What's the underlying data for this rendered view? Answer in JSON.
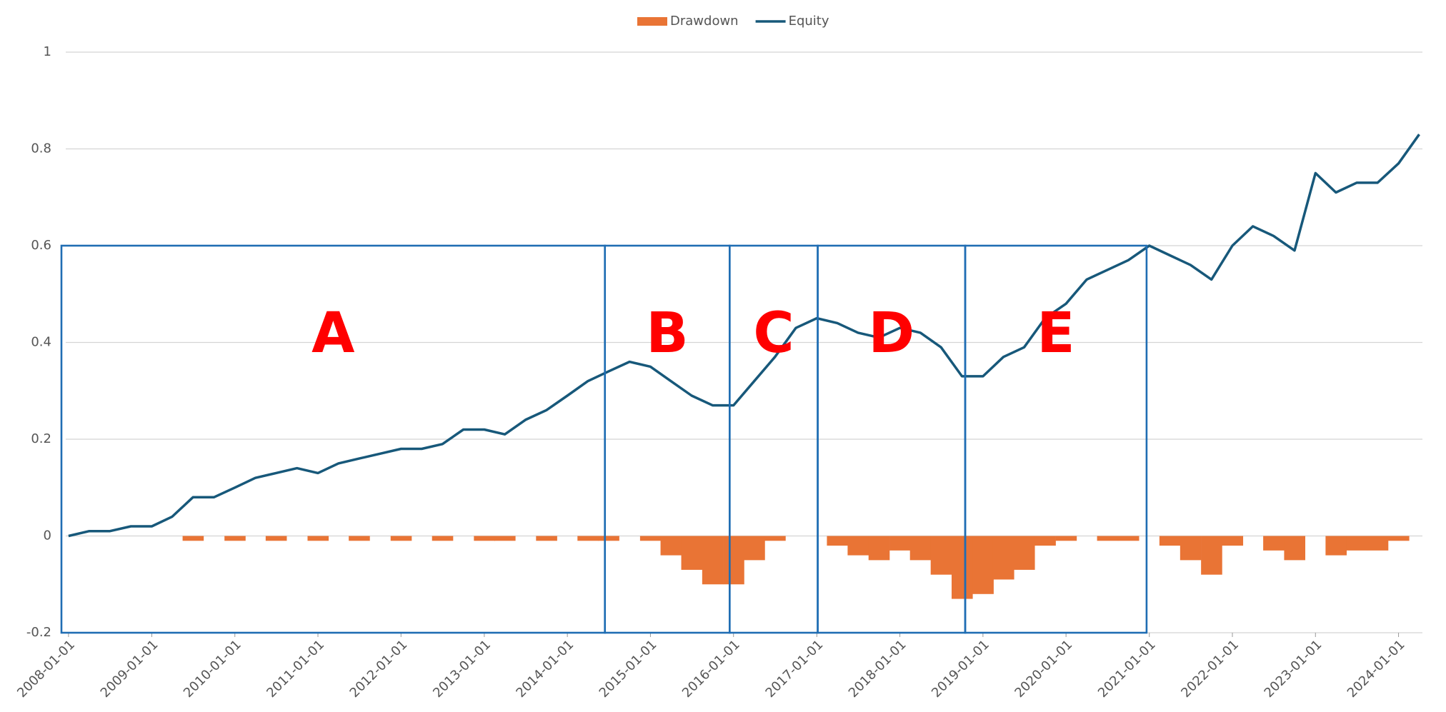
{
  "chart_data": {
    "type": "line",
    "legend": "top",
    "grid": true,
    "x": [
      "2008-01-01",
      "2008-04-01",
      "2008-07-01",
      "2008-10-01",
      "2009-01-01",
      "2009-04-01",
      "2009-07-01",
      "2009-10-01",
      "2010-01-01",
      "2010-04-01",
      "2010-07-01",
      "2010-10-01",
      "2011-01-01",
      "2011-04-01",
      "2011-07-01",
      "2011-10-01",
      "2012-01-01",
      "2012-04-01",
      "2012-07-01",
      "2012-10-01",
      "2013-01-01",
      "2013-04-01",
      "2013-07-01",
      "2013-10-01",
      "2014-01-01",
      "2014-04-01",
      "2014-07-01",
      "2014-10-01",
      "2015-01-01",
      "2015-04-01",
      "2015-07-01",
      "2015-10-01",
      "2016-01-01",
      "2016-04-01",
      "2016-07-01",
      "2016-10-01",
      "2017-01-01",
      "2017-04-01",
      "2017-07-01",
      "2017-10-01",
      "2018-01-01",
      "2018-04-01",
      "2018-07-01",
      "2018-10-01",
      "2019-01-01",
      "2019-04-01",
      "2019-07-01",
      "2019-10-01",
      "2020-01-01",
      "2020-04-01",
      "2020-07-01",
      "2020-10-01",
      "2021-01-01",
      "2021-04-01",
      "2021-07-01",
      "2021-10-01",
      "2022-01-01",
      "2022-04-01",
      "2022-07-01",
      "2022-10-01",
      "2023-01-01",
      "2023-04-01",
      "2023-07-01",
      "2023-10-01",
      "2024-01-01",
      "2024-04-01"
    ],
    "series": [
      {
        "name": "Drawdown",
        "type": "bar",
        "color": "#e97435",
        "values": [
          0,
          0,
          0,
          0,
          0,
          0,
          -0.01,
          0,
          -0.01,
          0,
          -0.01,
          0,
          -0.01,
          0,
          -0.01,
          0,
          -0.01,
          0,
          -0.01,
          0,
          -0.01,
          -0.01,
          0,
          -0.01,
          0,
          -0.01,
          -0.01,
          0,
          -0.01,
          -0.04,
          -0.07,
          -0.1,
          -0.1,
          -0.05,
          -0.01,
          0,
          0,
          -0.02,
          -0.04,
          -0.05,
          -0.03,
          -0.05,
          -0.08,
          -0.13,
          -0.12,
          -0.09,
          -0.07,
          -0.02,
          -0.01,
          0,
          -0.01,
          -0.01,
          0,
          -0.02,
          -0.05,
          -0.08,
          -0.02,
          0,
          -0.03,
          -0.05,
          0,
          -0.04,
          -0.03,
          -0.03,
          -0.01,
          0
        ]
      },
      {
        "name": "Equity",
        "type": "line",
        "color": "#17587a",
        "values": [
          0,
          0.01,
          0.01,
          0.02,
          0.02,
          0.04,
          0.08,
          0.08,
          0.1,
          0.12,
          0.13,
          0.14,
          0.13,
          0.15,
          0.16,
          0.17,
          0.18,
          0.18,
          0.19,
          0.22,
          0.22,
          0.21,
          0.24,
          0.26,
          0.29,
          0.32,
          0.34,
          0.36,
          0.35,
          0.32,
          0.29,
          0.27,
          0.27,
          0.32,
          0.37,
          0.43,
          0.45,
          0.44,
          0.42,
          0.41,
          0.43,
          0.42,
          0.39,
          0.33,
          0.33,
          0.37,
          0.39,
          0.45,
          0.48,
          0.53,
          0.55,
          0.57,
          0.6,
          0.58,
          0.56,
          0.53,
          0.6,
          0.64,
          0.62,
          0.59,
          0.75,
          0.71,
          0.73,
          0.73,
          0.77,
          0.83
        ]
      }
    ],
    "xlim": [
      "2007-12-01",
      "2024-04-15"
    ],
    "xticks": [
      "2008-01-01",
      "2009-01-01",
      "2010-01-01",
      "2011-01-01",
      "2012-01-01",
      "2013-01-01",
      "2014-01-01",
      "2015-01-01",
      "2016-01-01",
      "2017-01-01",
      "2018-01-01",
      "2019-01-01",
      "2020-01-01",
      "2021-01-01",
      "2022-01-01",
      "2023-01-01",
      "2024-01-01"
    ],
    "ylim": [
      -0.2,
      1
    ],
    "yticks": [
      -0.2,
      0,
      0.2,
      0.4,
      0.6,
      0.8,
      1
    ],
    "annotations": [
      {
        "label": "A",
        "x0": "2007-12-01",
        "x1": "2014-06-15",
        "y1": 0.6
      },
      {
        "label": "B",
        "x0": "2014-06-15",
        "x1": "2015-12-15",
        "y1": 0.6
      },
      {
        "label": "C",
        "x0": "2015-12-15",
        "x1": "2017-01-05",
        "y1": 0.6
      },
      {
        "label": "D",
        "x0": "2017-01-05",
        "x1": "2018-10-15",
        "y1": 0.6
      },
      {
        "label": "E",
        "x0": "2018-10-15",
        "x1": "2020-12-20",
        "y1": 0.6
      }
    ]
  }
}
